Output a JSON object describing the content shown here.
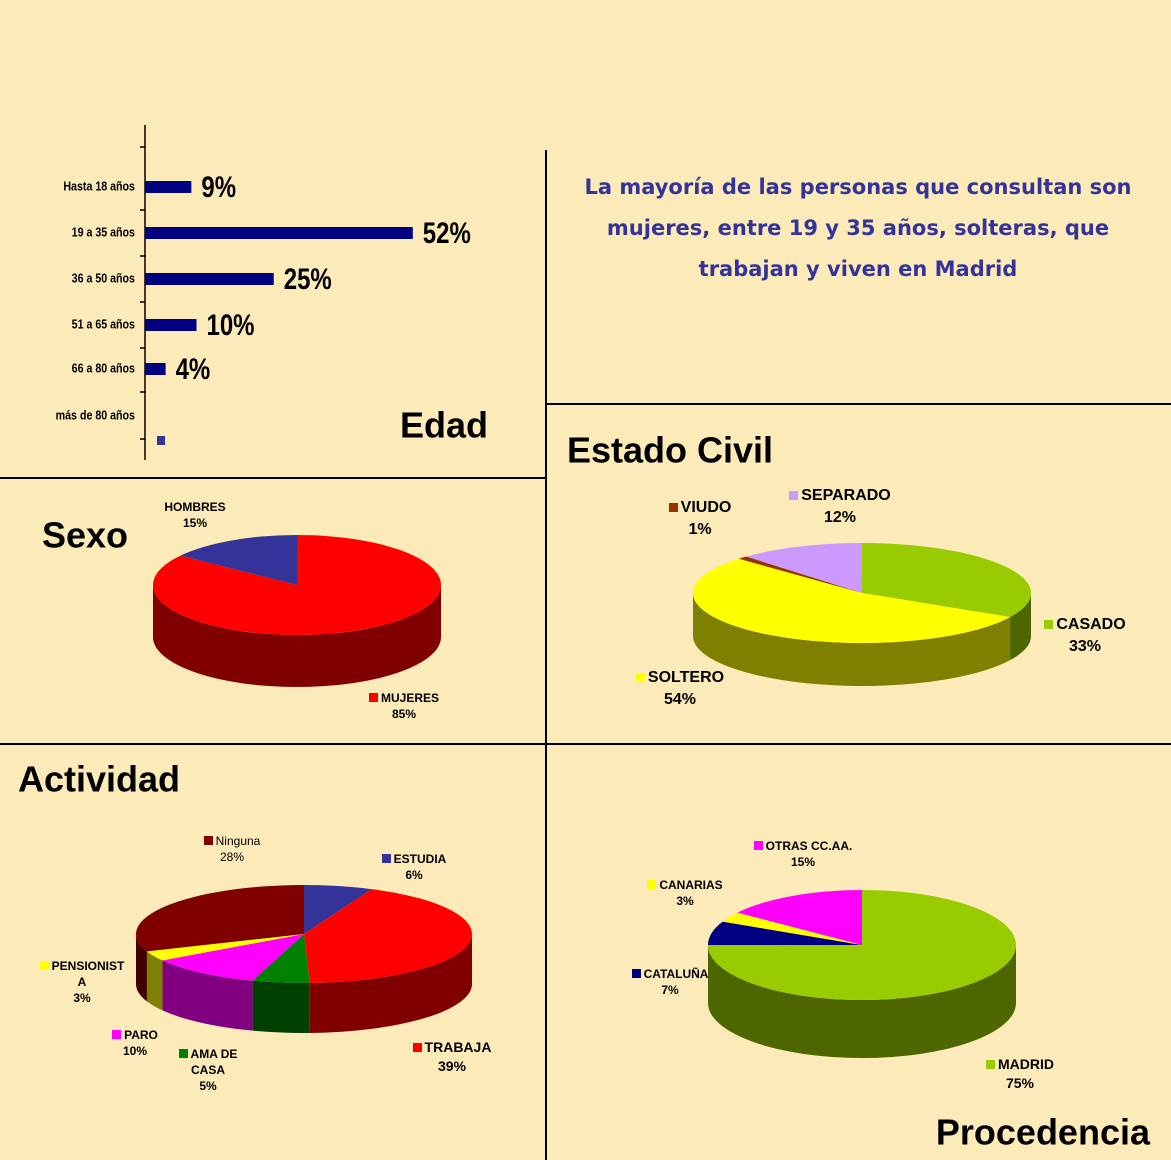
{
  "statement": [
    "La mayoría de las personas que consultan son",
    "mujeres, entre 19 y 35 años, solteras, que",
    "trabajan y viven en Madrid"
  ],
  "chart_data": [
    {
      "type": "bar",
      "orientation": "horizontal",
      "title": "Edad",
      "categories": [
        "Hasta 18 años",
        "19 a 35 años",
        "36 a 50 años",
        "51 a 65 años",
        "66 a 80 años",
        "más de 80 años"
      ],
      "values": [
        9,
        52,
        25,
        10,
        4,
        0
      ],
      "value_labels": [
        "9%",
        "52%",
        "25%",
        "10%",
        "4%",
        null
      ],
      "color": "#000080"
    },
    {
      "type": "pie3d",
      "title": "Sexo",
      "categories": [
        "MUJERES",
        "HOMBRES"
      ],
      "values": [
        85,
        15
      ],
      "value_labels": [
        "85%",
        "15%"
      ],
      "colors": [
        "#FF0000",
        "#333399"
      ]
    },
    {
      "type": "pie3d",
      "title": "Estado Civil",
      "categories": [
        "CASADO",
        "SOLTERO",
        "VIUDO",
        "SEPARADO"
      ],
      "values": [
        33,
        54,
        1,
        12
      ],
      "value_labels": [
        "33%",
        "54%",
        "1%",
        "12%"
      ],
      "colors": [
        "#99CC00",
        "#FFFF00",
        "#993300",
        "#CC99FF"
      ]
    },
    {
      "type": "pie3d",
      "title": "Actividad",
      "categories": [
        "ESTUDIA",
        "TRABAJA",
        "AMA DE CASA",
        "PARO",
        "PENSIONISTA",
        "Ninguna"
      ],
      "values": [
        6,
        39,
        5,
        10,
        3,
        28
      ],
      "value_labels": [
        "6%",
        "39%",
        "5%",
        "10%",
        "3%",
        "28%"
      ],
      "colors": [
        "#333399",
        "#FF0000",
        "#008000",
        "#FF00FF",
        "#FFFF00",
        "#800000"
      ]
    },
    {
      "type": "pie3d",
      "title": "Procedencia",
      "categories": [
        "MADRID",
        "CATALUÑA",
        "CANARIAS",
        "OTRAS CC.AA."
      ],
      "values": [
        75,
        7,
        3,
        15
      ],
      "value_labels": [
        "75%",
        "7%",
        "3%",
        "15%"
      ],
      "colors": [
        "#99CC00",
        "#000080",
        "#FFFF00",
        "#FF00FF"
      ]
    }
  ]
}
